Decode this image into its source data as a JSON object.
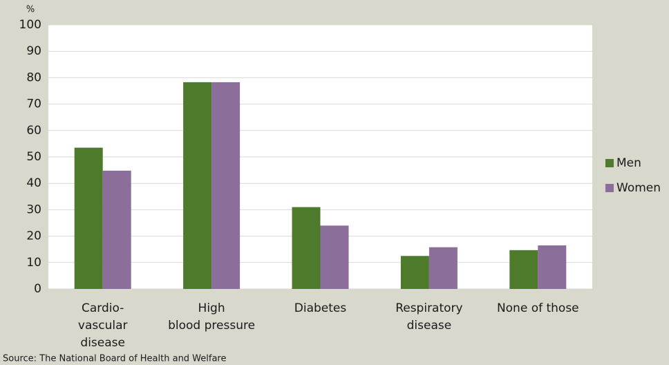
{
  "chart_data": {
    "type": "bar",
    "y_unit": "%",
    "categories": [
      [
        "Cardio-",
        "vascular",
        "disease"
      ],
      [
        "High",
        "blood pressure"
      ],
      [
        "Diabetes"
      ],
      [
        "Respiratory",
        "disease"
      ],
      [
        "None of those"
      ]
    ],
    "series": [
      {
        "name": "Men",
        "color": "#4e7a2c",
        "values": [
          53.5,
          78.3,
          31,
          12.5,
          14.7
        ]
      },
      {
        "name": "Women",
        "color": "#8c6e9b",
        "values": [
          44.8,
          78.3,
          24,
          15.8,
          16.5
        ]
      }
    ],
    "ylim": [
      0,
      100
    ],
    "yticks": [
      0,
      10,
      20,
      30,
      40,
      50,
      60,
      70,
      80,
      90,
      100
    ],
    "grid": true,
    "legend": "right",
    "source": "Source: The National Board of Health and Welfare"
  }
}
